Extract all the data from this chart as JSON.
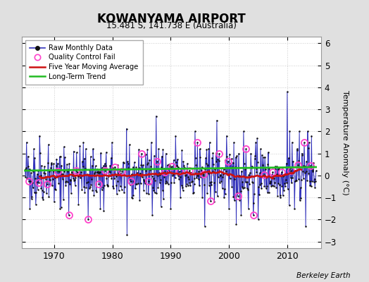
{
  "title": "KOWANYAMA AIRPORT",
  "subtitle": "15.481 S, 141.738 E (Australia)",
  "ylabel": "Temperature Anomaly (°C)",
  "credit": "Berkeley Earth",
  "ylim": [
    -3.3,
    6.3
  ],
  "xlim": [
    1964.5,
    2015.8
  ],
  "xticks": [
    1970,
    1980,
    1990,
    2000,
    2010
  ],
  "yticks": [
    -3,
    -2,
    -1,
    0,
    1,
    2,
    3,
    4,
    5,
    6
  ],
  "fig_bg_color": "#e0e0e0",
  "plot_bg_color": "#ffffff",
  "line_color": "#3333bb",
  "fill_color": "#8888cc",
  "dot_color": "#111111",
  "ma_color": "#cc1111",
  "trend_color": "#22bb22",
  "qc_color": "#ff44cc",
  "grid_color": "#cccccc",
  "seed": 42,
  "start_year": 1965,
  "end_year": 2014,
  "ma_window": 60
}
